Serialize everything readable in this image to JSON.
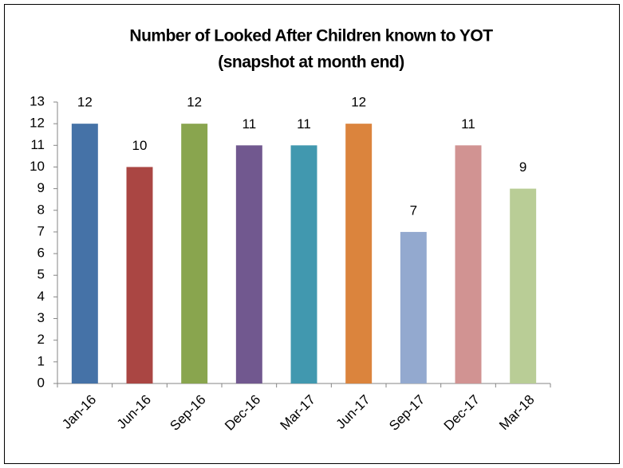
{
  "chart_data": {
    "type": "bar",
    "title": [
      "Number of Looked After Children known to YOT",
      "(snapshot at month end)"
    ],
    "categories": [
      "Jan-16",
      "Jun-16",
      "Sep-16",
      "Dec-16",
      "Mar-17",
      "Jun-17",
      "Sep-17",
      "Dec-17",
      "Mar-18"
    ],
    "values": [
      12,
      10,
      12,
      11,
      11,
      12,
      7,
      11,
      9
    ],
    "colors": [
      "#4572a7",
      "#aa4643",
      "#89a54e",
      "#71588f",
      "#4198af",
      "#db843d",
      "#93a9cf",
      "#d19392",
      "#b9cd96"
    ],
    "ylim": [
      0,
      13
    ],
    "yticks": [
      0,
      1,
      2,
      3,
      4,
      5,
      6,
      7,
      8,
      9,
      10,
      11,
      12,
      13
    ],
    "grid": false
  }
}
